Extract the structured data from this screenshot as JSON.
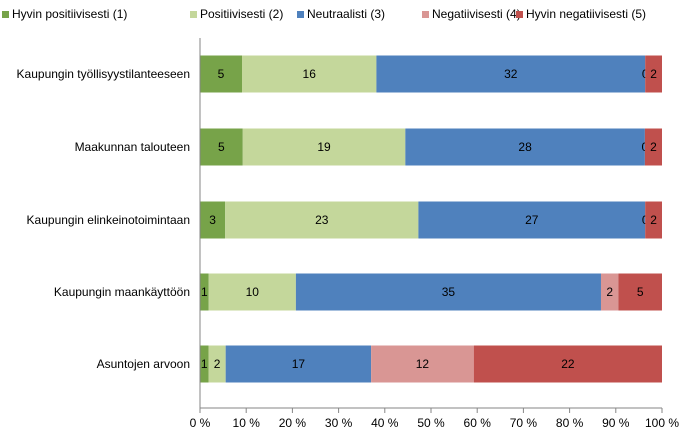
{
  "chart_data": {
    "type": "bar",
    "orientation": "horizontal",
    "stacking": "percent",
    "categories": [
      "Kaupungin työllisyystilanteeseen",
      "Maakunnan talouteen",
      "Kaupungin elinkeinotoimintaan",
      "Kaupungin maankäyttöön",
      "Asuntojen arvoon"
    ],
    "series": [
      {
        "name": "Hyvin positiivisesti (1)",
        "color": "#77a349",
        "values": [
          5,
          5,
          3,
          1,
          1
        ]
      },
      {
        "name": "Positiivisesti (2)",
        "color": "#c4d79b",
        "values": [
          16,
          19,
          23,
          10,
          2
        ]
      },
      {
        "name": "Neutraalisti (3)",
        "color": "#4f81bd",
        "values": [
          32,
          28,
          27,
          35,
          17
        ]
      },
      {
        "name": "Negatiivisesti (4)",
        "color": "#d99694",
        "values": [
          0,
          0,
          0,
          2,
          12
        ]
      },
      {
        "name": "Hyvin negatiivisesti (5)",
        "color": "#c0504d",
        "values": [
          2,
          2,
          2,
          5,
          22
        ]
      }
    ],
    "xticks": [
      "0 %",
      "10 %",
      "20 %",
      "30 %",
      "40 %",
      "50 %",
      "60 %",
      "70 %",
      "80 %",
      "90 %",
      "100 %"
    ],
    "xlim": [
      0,
      100
    ],
    "legend": "top",
    "grid": false,
    "title": "",
    "xlabel": "",
    "ylabel": ""
  }
}
